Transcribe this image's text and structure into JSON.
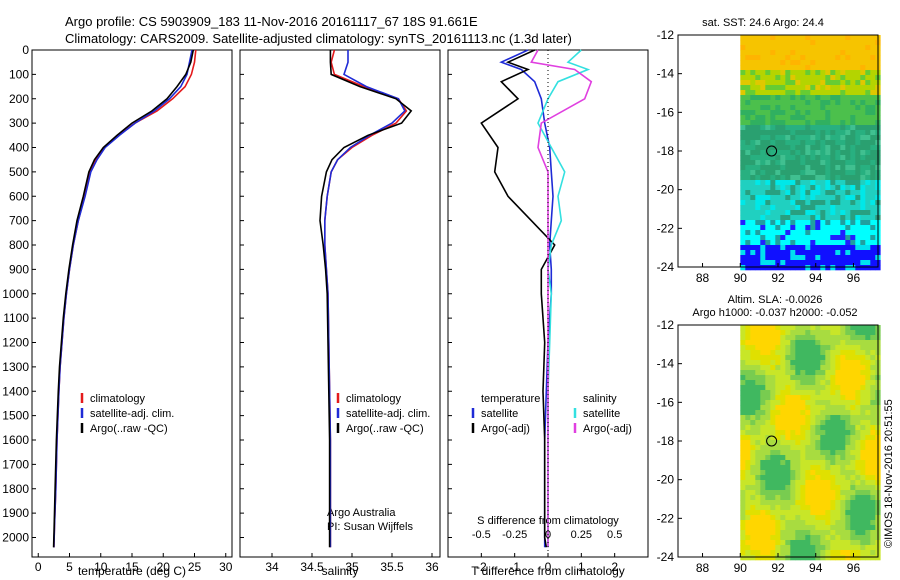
{
  "header": {
    "line1": "Argo profile: CS 5903909_183 11-Nov-2016 20161117_67 18S 91.661E",
    "line2": "Climatology: CARS2009. Satellite-adjusted climatology: synTS_20161113.nc (1.3d later)"
  },
  "colors": {
    "climatology": "#e41a1c",
    "satellite": "#1f2bd6",
    "argo": "#000000",
    "sal_satellite": "#33e0e0",
    "sal_argo": "#e040e0"
  },
  "chart_data": [
    {
      "type": "line",
      "id": "temperature",
      "xlabel": "temperature (deg C)",
      "xlim": [
        -1,
        31
      ],
      "xticks": [
        0,
        5,
        10,
        15,
        20,
        25,
        30
      ],
      "ylim": [
        0,
        2080
      ],
      "yticks": [
        0,
        100,
        200,
        300,
        400,
        500,
        600,
        700,
        800,
        900,
        1000,
        1100,
        1200,
        1300,
        1400,
        1500,
        1600,
        1700,
        1800,
        1900,
        2000
      ],
      "legend": [
        "climatology",
        "satellite-adj. clim.",
        "Argo(..raw -QC)"
      ],
      "series": [
        {
          "name": "climatology",
          "color_key": "climatology",
          "x": [
            25.2,
            25.0,
            24.5,
            23.5,
            21.5,
            19,
            15.5,
            12.8,
            10.5,
            9.2,
            8.3,
            7.4,
            6.4,
            5.6,
            5.0,
            4.5,
            4.1,
            3.8,
            3.5,
            3.3,
            3.0,
            2.8,
            2.6,
            2.5
          ],
          "depth": [
            0,
            50,
            100,
            150,
            200,
            250,
            300,
            350,
            400,
            450,
            500,
            600,
            700,
            800,
            900,
            1000,
            1100,
            1200,
            1300,
            1400,
            1600,
            1800,
            1950,
            2040
          ]
        },
        {
          "name": "satellite-adj. clim.",
          "color_key": "satellite",
          "x": [
            24.6,
            24.2,
            23.8,
            22.8,
            21.0,
            18.6,
            15.5,
            13.0,
            10.7,
            9.4,
            8.4,
            7.5,
            6.4,
            5.6,
            5.0,
            4.5,
            4.1,
            3.8,
            3.5,
            3.3,
            3.0,
            2.8,
            2.6,
            2.5
          ],
          "depth": [
            0,
            50,
            100,
            150,
            200,
            250,
            300,
            350,
            400,
            450,
            500,
            600,
            700,
            800,
            900,
            1000,
            1100,
            1200,
            1300,
            1400,
            1600,
            1800,
            1950,
            2040
          ]
        },
        {
          "name": "Argo",
          "color_key": "argo",
          "x": [
            24.8,
            24.4,
            23.6,
            22.2,
            20.6,
            18.2,
            15.0,
            12.6,
            10.4,
            9.0,
            8.1,
            7.2,
            6.2,
            5.5,
            4.9,
            4.4,
            4.0,
            3.7,
            3.4,
            3.2,
            2.9,
            2.7,
            2.55,
            2.45
          ],
          "depth": [
            0,
            50,
            100,
            150,
            200,
            250,
            300,
            350,
            400,
            450,
            500,
            600,
            700,
            800,
            900,
            1000,
            1100,
            1200,
            1300,
            1400,
            1600,
            1800,
            1950,
            2040
          ]
        }
      ]
    },
    {
      "type": "line",
      "id": "salinity",
      "xlabel": "salinity",
      "xlim": [
        33.6,
        36.1
      ],
      "xticks": [
        34,
        34.5,
        35,
        35.5,
        36
      ],
      "ylim": [
        0,
        2080
      ],
      "legend": [
        "climatology",
        "satellite-adj. clim.",
        "Argo(..raw -QC)"
      ],
      "annotation": [
        "Argo Australia",
        "PI: Susan Wijffels"
      ],
      "series": [
        {
          "name": "climatology",
          "color_key": "climatology",
          "x": [
            34.78,
            34.74,
            34.78,
            35.15,
            35.58,
            35.68,
            35.55,
            35.25,
            35.0,
            34.82,
            34.74,
            34.69,
            34.66,
            34.66,
            34.68,
            34.7,
            34.71,
            34.72,
            34.73,
            34.73,
            34.73
          ],
          "depth": [
            0,
            50,
            100,
            150,
            200,
            250,
            300,
            350,
            400,
            450,
            500,
            600,
            700,
            800,
            900,
            1000,
            1200,
            1400,
            1600,
            1800,
            2040
          ]
        },
        {
          "name": "satellite-adj. clim.",
          "color_key": "satellite",
          "x": [
            34.95,
            34.95,
            34.9,
            35.18,
            35.58,
            35.66,
            35.5,
            35.22,
            34.98,
            34.82,
            34.74,
            34.69,
            34.66,
            34.66,
            34.68,
            34.7,
            34.71,
            34.72,
            34.73,
            34.73,
            34.73
          ],
          "depth": [
            0,
            50,
            100,
            150,
            200,
            250,
            300,
            350,
            400,
            450,
            500,
            600,
            700,
            800,
            900,
            1000,
            1200,
            1400,
            1600,
            1800,
            2040
          ]
        },
        {
          "name": "Argo",
          "color_key": "argo",
          "x": [
            34.73,
            34.73,
            34.74,
            35.1,
            35.55,
            35.74,
            35.62,
            35.2,
            34.9,
            34.75,
            34.68,
            34.62,
            34.6,
            34.64,
            34.67,
            34.69,
            34.7,
            34.71,
            34.72,
            34.72,
            34.72
          ],
          "depth": [
            0,
            50,
            100,
            150,
            200,
            250,
            300,
            350,
            400,
            450,
            500,
            600,
            700,
            800,
            900,
            1000,
            1200,
            1400,
            1600,
            1800,
            2040
          ]
        }
      ]
    },
    {
      "type": "line",
      "id": "difference",
      "xlabel": "T difference from climatology",
      "xlabel_top": "S difference from climatology",
      "xlim": [
        -3,
        3
      ],
      "xticks": [
        -2,
        -1,
        0,
        1,
        2
      ],
      "xtick_labels": [
        "-2",
        "-1",
        "0",
        "1",
        "2"
      ],
      "s_ticks": [
        -0.5,
        -0.25,
        0,
        0.25,
        0.5
      ],
      "s_tick_labels": [
        "-0.5",
        "-0.25",
        "0",
        "0.25",
        "0.5"
      ],
      "ylim": [
        0,
        2080
      ],
      "legend_left": {
        "title": "temperature",
        "items": [
          "satellite",
          "Argo(-adj)"
        ]
      },
      "legend_right": {
        "title": "salinity",
        "items": [
          "satellite",
          "Argo(-adj)"
        ]
      },
      "series": [
        {
          "name": "T satellite",
          "color_key": "satellite",
          "x": [
            -0.6,
            -1.4,
            -0.8,
            -0.4,
            -0.2,
            -0.1,
            0.05,
            0.1,
            0.15,
            0.1,
            0.05,
            0.1,
            0.1,
            0.0,
            -0.05,
            -0.1,
            -0.1,
            -0.1,
            -0.1,
            -0.1
          ],
          "depth": [
            0,
            50,
            80,
            130,
            200,
            300,
            400,
            500,
            600,
            700,
            800,
            900,
            1000,
            1200,
            1400,
            1600,
            1800,
            1900,
            2000,
            2040
          ]
        },
        {
          "name": "T Argo",
          "color_key": "argo",
          "x": [
            -0.4,
            -1.2,
            -0.6,
            -1.4,
            -0.9,
            -2.0,
            -1.5,
            -1.6,
            -1.2,
            -0.5,
            0.2,
            -0.2,
            -0.2,
            -0.1,
            -0.15,
            -0.1,
            -0.1,
            -0.1,
            -0.1,
            -0.05
          ],
          "depth": [
            0,
            50,
            80,
            130,
            200,
            300,
            400,
            500,
            600,
            700,
            800,
            900,
            1000,
            1200,
            1400,
            1600,
            1800,
            1900,
            2000,
            2040
          ]
        },
        {
          "name": "S satellite",
          "color_key": "sal_satellite",
          "x": [
            1.0,
            0.6,
            1.2,
            0.3,
            0.0,
            -0.3,
            0.1,
            0.5,
            0.3,
            0.4,
            0.1,
            0.0,
            0.1,
            0.05,
            0.0,
            0.0,
            0.0,
            0.0,
            0.0,
            0.0
          ],
          "depth": [
            0,
            50,
            80,
            130,
            200,
            300,
            400,
            500,
            600,
            700,
            800,
            900,
            1000,
            1200,
            1400,
            1600,
            1800,
            1900,
            2000,
            2040
          ]
        },
        {
          "name": "S Argo",
          "color_key": "sal_argo",
          "x": [
            -0.3,
            -0.5,
            0.8,
            1.3,
            1.1,
            -0.2,
            -0.3,
            0.0,
            0.0,
            0.0,
            0.0,
            0.0,
            0.0,
            0.0,
            0.0,
            0.0,
            0.0,
            0.0,
            0.0,
            0.0
          ],
          "depth": [
            0,
            50,
            80,
            130,
            200,
            300,
            400,
            500,
            600,
            700,
            800,
            900,
            1000,
            1200,
            1400,
            1600,
            1800,
            1900,
            2000,
            2040
          ]
        }
      ]
    },
    {
      "type": "heatmap",
      "id": "sst_map",
      "title": "sat. SST: 24.6  Argo: 24.4",
      "xticks": [
        88,
        90,
        92,
        94,
        96
      ],
      "yticks": [
        -12,
        -14,
        -16,
        -18,
        -20,
        -22,
        -24
      ],
      "xlim": [
        86.7,
        97.3
      ],
      "ylim": [
        -24,
        -12
      ],
      "data_extent_lon": [
        90,
        97.3
      ],
      "argo_position": [
        91.661,
        -18
      ]
    },
    {
      "type": "heatmap",
      "id": "sla_map",
      "title_line1": "Altim. SLA: -0.0026",
      "title_line2": "Argo h1000: -0.037  h2000: -0.052",
      "xticks": [
        88,
        90,
        92,
        94,
        96
      ],
      "yticks": [
        -12,
        -14,
        -16,
        -18,
        -20,
        -22,
        -24
      ],
      "xlim": [
        86.7,
        97.3
      ],
      "ylim": [
        -24,
        -12
      ],
      "data_extent_lon": [
        90,
        97.3
      ],
      "argo_position": [
        91.661,
        -18
      ]
    }
  ],
  "footer": {
    "stamp": "©IMOS 18-Nov-2016 20:51:55"
  }
}
